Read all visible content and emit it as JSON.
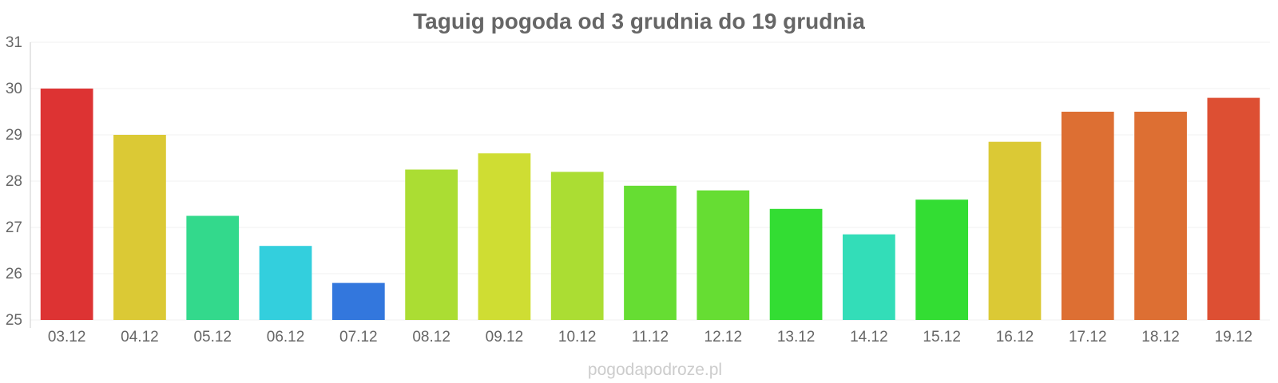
{
  "chart_data": {
    "type": "bar",
    "title": "Taguig pogoda od 3 grudnia do 19 grudnia",
    "xlabel": "",
    "ylabel": "",
    "categories": [
      "03.12",
      "04.12",
      "05.12",
      "06.12",
      "07.12",
      "08.12",
      "09.12",
      "10.12",
      "11.12",
      "12.12",
      "13.12",
      "14.12",
      "15.12",
      "16.12",
      "17.12",
      "18.12",
      "19.12"
    ],
    "values": [
      30.0,
      29.0,
      27.25,
      26.6,
      25.8,
      28.25,
      28.6,
      28.2,
      27.9,
      27.8,
      27.4,
      26.85,
      27.6,
      28.85,
      29.5,
      29.5,
      29.8
    ],
    "colors": [
      "#dd3333",
      "#dbc935",
      "#33d98c",
      "#33cfdd",
      "#3377dd",
      "#abdd33",
      "#cfdd33",
      "#abdd33",
      "#66dd33",
      "#66dd33",
      "#33dd33",
      "#33ddb8",
      "#33dd33",
      "#dbc935",
      "#dd6f33",
      "#dd6f33",
      "#dd4f33"
    ],
    "ylim": [
      25,
      31
    ],
    "yticks": [
      25,
      26,
      27,
      28,
      29,
      30,
      31
    ],
    "grid": true,
    "legend": "none"
  },
  "watermark": "pogodapodroze.pl"
}
